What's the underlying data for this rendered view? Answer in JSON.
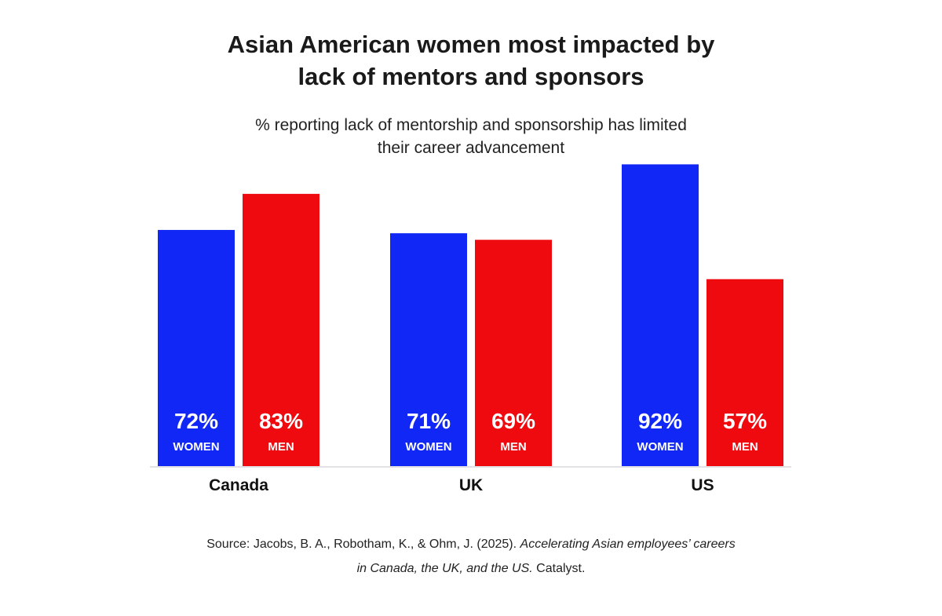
{
  "title_lines": [
    "Asian American women most impacted by",
    "lack of mentors and sponsors"
  ],
  "subtitle_lines": [
    "% reporting lack of mentorship and sponsorship has limited",
    "their career advancement"
  ],
  "colors": {
    "women": "#1027f5",
    "men": "#ee0a0f",
    "baseline": "#e2e2e6",
    "label": "#ffffff"
  },
  "chart_data": {
    "type": "bar",
    "categories": [
      "Canada",
      "UK",
      "US"
    ],
    "series": [
      {
        "name": "WOMEN",
        "values": [
          72,
          71,
          92
        ],
        "labels": [
          "72%",
          "71%",
          "92%"
        ]
      },
      {
        "name": "MEN",
        "values": [
          83,
          69,
          57
        ],
        "labels": [
          "83%",
          "69%",
          "57%"
        ]
      }
    ],
    "ylim": [
      0,
      100
    ],
    "grid": false,
    "legend": "none"
  },
  "source": {
    "line1_prefix": "Source: Jacobs, B. A., Robotham, K., & Ohm, J. (2025). ",
    "line1_italic": "Accelerating Asian employees’ careers",
    "line2_italic": "in Canada, the UK, and the US.",
    "line2_suffix": " Catalyst."
  }
}
